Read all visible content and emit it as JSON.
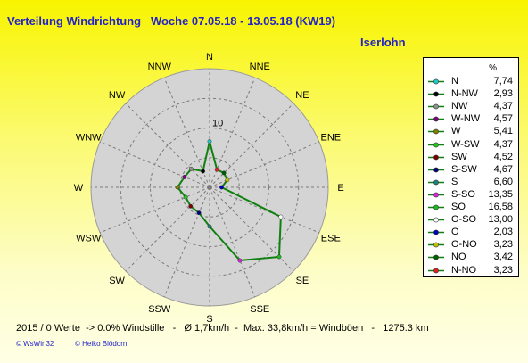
{
  "header": {
    "title": "Verteilung Windrichtung   Woche 07.05.18 - 13.05.18 (KW19)",
    "station": "Iserlohn"
  },
  "legend": {
    "unit": "%"
  },
  "chart_data": {
    "type": "radar",
    "title": "Verteilung Windrichtung   Woche 07.05.18 - 13.05.18 (KW19)",
    "directions": [
      "N",
      "NNE",
      "NE",
      "ENE",
      "E",
      "ESE",
      "SE",
      "SSE",
      "S",
      "SSW",
      "SW",
      "WSW",
      "W",
      "WNW",
      "NW",
      "NNW"
    ],
    "ring_label": "10",
    "rmax": 20,
    "grid": true,
    "legend_position": "right",
    "series": [
      {
        "name": "N",
        "value": "7,74",
        "dir": "N",
        "r": 7.74,
        "color": "#20c8c8"
      },
      {
        "name": "N-NW",
        "value": "2,93",
        "dir": "NNW",
        "r": 2.93,
        "color": "#000000"
      },
      {
        "name": "NW",
        "value": "4,37",
        "dir": "NW",
        "r": 4.37,
        "color": "#909090"
      },
      {
        "name": "W-NW",
        "value": "4,57",
        "dir": "WNW",
        "r": 4.57,
        "color": "#800080"
      },
      {
        "name": "W",
        "value": "5,41",
        "dir": "W",
        "r": 5.41,
        "color": "#808000"
      },
      {
        "name": "W-SW",
        "value": "4,37",
        "dir": "WSW",
        "r": 4.37,
        "color": "#20c820"
      },
      {
        "name": "SW",
        "value": "4,52",
        "dir": "SW",
        "r": 4.52,
        "color": "#800000"
      },
      {
        "name": "S-SW",
        "value": "4,67",
        "dir": "SSW",
        "r": 4.67,
        "color": "#000080"
      },
      {
        "name": "S",
        "value": "6,60",
        "dir": "S",
        "r": 6.6,
        "color": "#208080"
      },
      {
        "name": "S-SO",
        "value": "13,35",
        "dir": "SSE",
        "r": 13.35,
        "color": "#e020e0"
      },
      {
        "name": "SO",
        "value": "16,58",
        "dir": "SE",
        "r": 16.58,
        "color": "#20b820"
      },
      {
        "name": "O-SO",
        "value": "13,00",
        "dir": "ESE",
        "r": 13.0,
        "color": "#ffffff"
      },
      {
        "name": "O",
        "value": "2,03",
        "dir": "E",
        "r": 2.03,
        "color": "#0000c0"
      },
      {
        "name": "O-NO",
        "value": "3,23",
        "dir": "ENE",
        "r": 3.23,
        "color": "#c0c000"
      },
      {
        "name": "NO",
        "value": "3,42",
        "dir": "NE",
        "r": 3.42,
        "color": "#006000"
      },
      {
        "name": "N-NO",
        "value": "3,23",
        "dir": "NNE",
        "r": 3.23,
        "color": "#e02020"
      }
    ],
    "line_color": "#108010"
  },
  "footer": {
    "stats": "2015 / 0 Werte  -> 0.0% Windstille   -   Ø 1,7km/h  -  Max. 33,8km/h = Windböen   -   1275.3 km",
    "credit1": "© WsWin32",
    "credit2": "© Heiko Blödorn"
  }
}
